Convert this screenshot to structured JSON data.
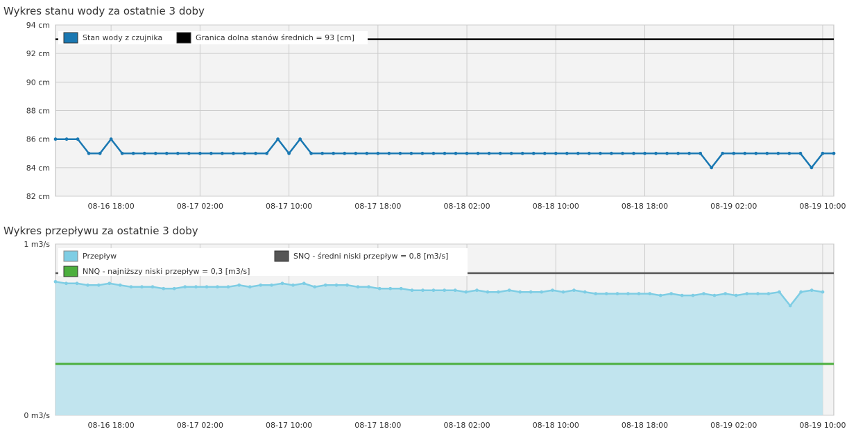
{
  "chart_data": [
    {
      "type": "line",
      "title": "Wykres stanu wody za ostatnie 3 doby",
      "xlabel": "",
      "ylabel": "",
      "y_unit": "cm",
      "ylim": [
        82,
        94
      ],
      "y_ticks": [
        82,
        84,
        86,
        88,
        90,
        92,
        94
      ],
      "y_tick_labels": [
        "82 cm",
        "84 cm",
        "86 cm",
        "88 cm",
        "90 cm",
        "92 cm",
        "94 cm"
      ],
      "x_range": [
        "2025-08-16 13:00",
        "2025-08-19 11:00"
      ],
      "x_ticks": [
        "2025-08-16 18:00",
        "2025-08-17 02:00",
        "2025-08-17 10:00",
        "2025-08-17 18:00",
        "2025-08-18 02:00",
        "2025-08-18 10:00",
        "2025-08-18 18:00",
        "2025-08-19 02:00",
        "2025-08-19 10:00"
      ],
      "x_tick_labels": [
        "08-16 18:00",
        "08-17 02:00",
        "08-17 10:00",
        "08-17 18:00",
        "08-18 02:00",
        "08-18 10:00",
        "08-18 18:00",
        "08-19 02:00",
        "08-19 10:00"
      ],
      "grid": true,
      "legend_position": "top-left",
      "series": [
        {
          "name": "Stan wody z czujnika",
          "color": "#1a78b2",
          "x": [
            "2025-08-16 13:00",
            "2025-08-16 14:00",
            "2025-08-16 15:00",
            "2025-08-16 16:00",
            "2025-08-16 17:00",
            "2025-08-16 18:00",
            "2025-08-16 19:00",
            "2025-08-16 20:00",
            "2025-08-16 21:00",
            "2025-08-16 22:00",
            "2025-08-16 23:00",
            "2025-08-17 00:00",
            "2025-08-17 01:00",
            "2025-08-17 02:00",
            "2025-08-17 03:00",
            "2025-08-17 04:00",
            "2025-08-17 05:00",
            "2025-08-17 06:00",
            "2025-08-17 07:00",
            "2025-08-17 08:00",
            "2025-08-17 09:00",
            "2025-08-17 10:00",
            "2025-08-17 11:00",
            "2025-08-17 12:00",
            "2025-08-17 13:00",
            "2025-08-17 14:00",
            "2025-08-17 15:00",
            "2025-08-17 16:00",
            "2025-08-17 17:00",
            "2025-08-17 18:00",
            "2025-08-17 19:00",
            "2025-08-17 20:00",
            "2025-08-17 21:00",
            "2025-08-17 22:00",
            "2025-08-17 23:00",
            "2025-08-18 00:00",
            "2025-08-18 01:00",
            "2025-08-18 02:00",
            "2025-08-18 03:00",
            "2025-08-18 04:00",
            "2025-08-18 05:00",
            "2025-08-18 06:00",
            "2025-08-18 07:00",
            "2025-08-18 08:00",
            "2025-08-18 09:00",
            "2025-08-18 10:00",
            "2025-08-18 11:00",
            "2025-08-18 12:00",
            "2025-08-18 13:00",
            "2025-08-18 14:00",
            "2025-08-18 15:00",
            "2025-08-18 16:00",
            "2025-08-18 17:00",
            "2025-08-18 18:00",
            "2025-08-18 19:00",
            "2025-08-18 20:00",
            "2025-08-18 21:00",
            "2025-08-18 22:00",
            "2025-08-18 23:00",
            "2025-08-19 00:00",
            "2025-08-19 01:00",
            "2025-08-19 02:00",
            "2025-08-19 03:00",
            "2025-08-19 04:00",
            "2025-08-19 05:00",
            "2025-08-19 06:00",
            "2025-08-19 07:00",
            "2025-08-19 08:00",
            "2025-08-19 09:00",
            "2025-08-19 10:00",
            "2025-08-19 11:00"
          ],
          "values": [
            86,
            86,
            86,
            85,
            85,
            86,
            85,
            85,
            85,
            85,
            85,
            85,
            85,
            85,
            85,
            85,
            85,
            85,
            85,
            85,
            86,
            85,
            86,
            85,
            85,
            85,
            85,
            85,
            85,
            85,
            85,
            85,
            85,
            85,
            85,
            85,
            85,
            85,
            85,
            85,
            85,
            85,
            85,
            85,
            85,
            85,
            85,
            85,
            85,
            85,
            85,
            85,
            85,
            85,
            85,
            85,
            85,
            85,
            85,
            84,
            85,
            85,
            85,
            85,
            85,
            85,
            85,
            85,
            84,
            85,
            85
          ]
        },
        {
          "name": "Granica dolna stanów średnich = 93 [cm]",
          "color": "#000000",
          "constant": 93
        }
      ]
    },
    {
      "type": "area",
      "title": "Wykres przepływu za ostatnie 3 doby",
      "xlabel": "",
      "ylabel": "",
      "y_unit": "m3/s",
      "ylim": [
        0,
        1
      ],
      "y_ticks": [
        0,
        1
      ],
      "y_tick_labels": [
        "0 m3/s",
        "1 m3/s"
      ],
      "x_range": [
        "2025-08-16 13:00",
        "2025-08-19 11:00"
      ],
      "x_ticks": [
        "2025-08-16 18:00",
        "2025-08-17 02:00",
        "2025-08-17 10:00",
        "2025-08-17 18:00",
        "2025-08-18 02:00",
        "2025-08-18 10:00",
        "2025-08-18 18:00",
        "2025-08-19 02:00",
        "2025-08-19 10:00"
      ],
      "x_tick_labels": [
        "08-16 18:00",
        "08-17 02:00",
        "08-17 10:00",
        "08-17 18:00",
        "08-18 02:00",
        "08-18 10:00",
        "08-18 18:00",
        "08-19 02:00",
        "08-19 10:00"
      ],
      "grid": true,
      "legend_position": "top-left",
      "series": [
        {
          "name": "Przepływ",
          "color": "#7ecde4",
          "x_start": "2025-08-16 13:00",
          "x_end": "2025-08-19 10:00",
          "values": [
            0.78,
            0.77,
            0.77,
            0.76,
            0.76,
            0.77,
            0.76,
            0.75,
            0.75,
            0.75,
            0.74,
            0.74,
            0.75,
            0.75,
            0.75,
            0.75,
            0.75,
            0.76,
            0.75,
            0.76,
            0.76,
            0.77,
            0.76,
            0.77,
            0.75,
            0.76,
            0.76,
            0.76,
            0.75,
            0.75,
            0.74,
            0.74,
            0.74,
            0.73,
            0.73,
            0.73,
            0.73,
            0.73,
            0.72,
            0.73,
            0.72,
            0.72,
            0.73,
            0.72,
            0.72,
            0.72,
            0.73,
            0.72,
            0.73,
            0.72,
            0.71,
            0.71,
            0.71,
            0.71,
            0.71,
            0.71,
            0.7,
            0.71,
            0.7,
            0.7,
            0.71,
            0.7,
            0.71,
            0.7,
            0.71,
            0.71,
            0.71,
            0.72,
            0.64,
            0.72,
            0.73,
            0.72
          ]
        },
        {
          "name": "SNQ - średni niski przepływ = 0,8 [m3/s]",
          "color": "#555555",
          "constant": 0.83
        },
        {
          "name": "NNQ - najniższy niski przepływ = 0,3 [m3/s]",
          "color": "#4caf3e",
          "constant": 0.3
        }
      ]
    }
  ]
}
